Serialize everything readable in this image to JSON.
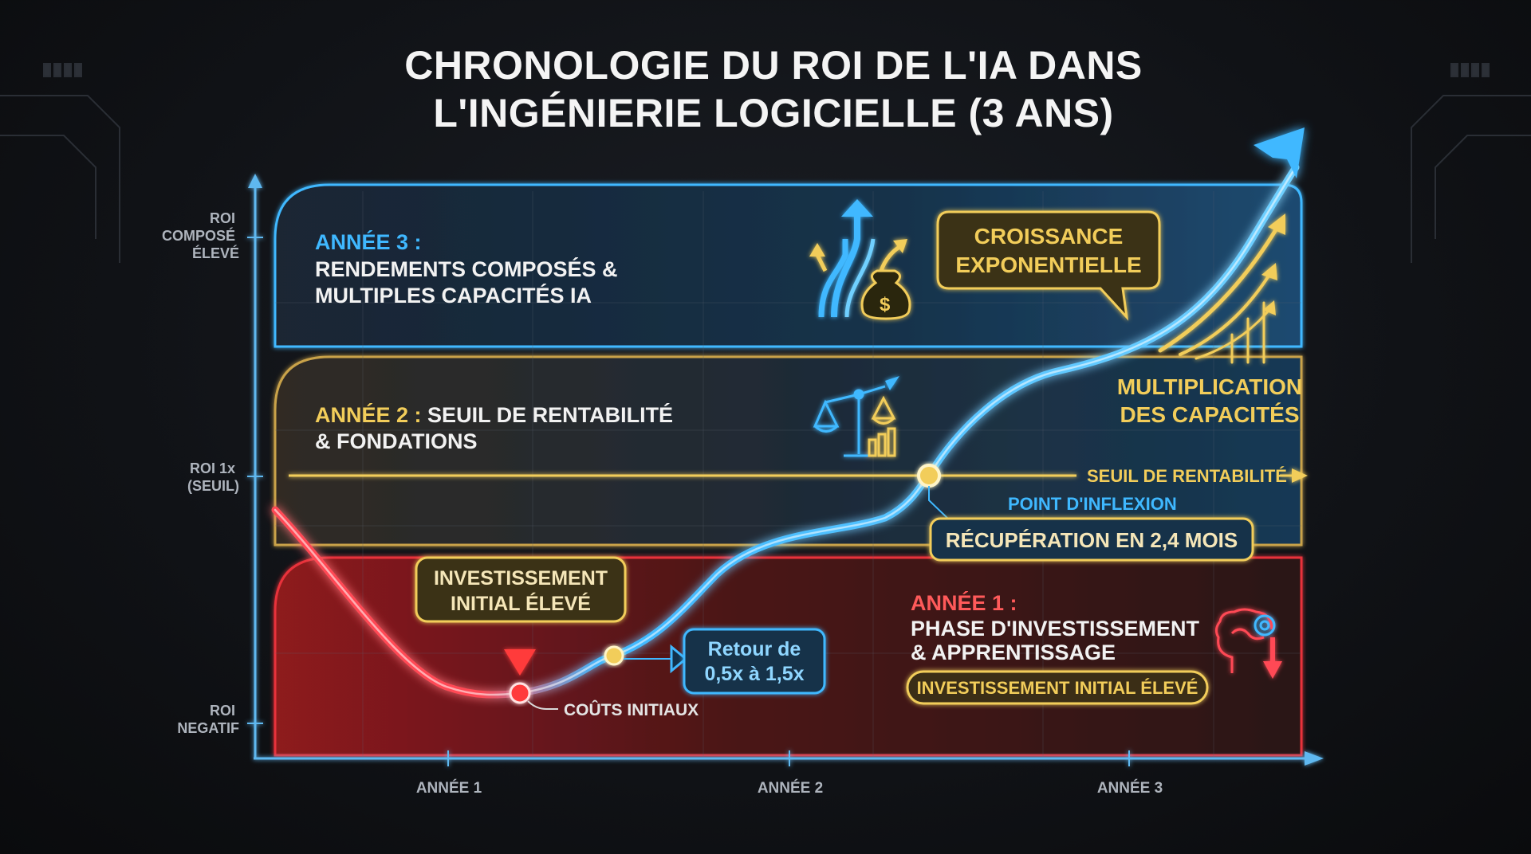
{
  "title_line1": "CHRONOLOGIE DU ROI DE L'IA DANS",
  "title_line2": "L'INGÉNIERIE LOGICIELLE (3 ANS)",
  "y_axis": {
    "high": [
      "ROI",
      "COMPOSÉ",
      "ÉLEVÉ"
    ],
    "mid": [
      "ROI 1x",
      "(SEUIL)"
    ],
    "low": [
      "ROI",
      "NEGATIF"
    ]
  },
  "x_axis": {
    "ticks": [
      "ANNÉE 1",
      "ANNÉE 2",
      "ANNÉE 3"
    ]
  },
  "bands": {
    "year3": {
      "head": "ANNÉE 3 :",
      "line1": "RENDEMENTS COMPOSÉS &",
      "line2": "MULTIPLES CAPACITÉS IA"
    },
    "year2": {
      "head": "ANNÉE 2 :",
      "line1_rest": "SEUIL DE RENTABILITÉ",
      "line2": "& FONDATIONS"
    },
    "year1": {
      "head": "ANNÉE 1 :",
      "line1": "PHASE D'INVESTISSEMENT",
      "line2": "& APPRENTISSAGE",
      "pill": "INVESTISSEMENT INITIAL ÉLEVÉ"
    }
  },
  "callouts": {
    "croissance": [
      "CROISSANCE",
      "EXPONENTIELLE"
    ],
    "multiplication": [
      "MULTIPLICATION",
      "DES CAPACITÉS"
    ],
    "seuil": "SEUIL DE RENTABILITÉ",
    "inflexion": "POINT D'INFLEXION",
    "recuperation": "RÉCUPÉRATION EN 2,4 MOIS",
    "investissement": [
      "INVESTISSEMENT",
      "INITIAL ÉLEVÉ"
    ],
    "retour": [
      "Retour de",
      "0,5x à 1,5x"
    ],
    "couts": "COÛTS INITIAUX"
  },
  "icons": [
    "growth-arrows-money-bag-icon",
    "balance-scale-chart-icon",
    "brain-gear-down-icon"
  ],
  "colors": {
    "accent_blue": "#3fb8ff",
    "gold": "#f2cd5a",
    "red": "#e8313a"
  },
  "chart_data": {
    "type": "line",
    "x_ticks": [
      "ANNÉE 1",
      "ANNÉE 2",
      "ANNÉE 3"
    ],
    "y_ticks": [
      "ROI NEGATIF",
      "ROI 1x (SEUIL)",
      "ROI COMPOSÉ ÉLEVÉ"
    ],
    "markers": [
      {
        "label": "COÛTS INITIAUX",
        "x": 1.2
      },
      {
        "label": "Retour de 0,5x à 1,5x",
        "x": 1.5
      },
      {
        "label": "POINT D'INFLEXION",
        "x": 2.4
      }
    ]
  }
}
